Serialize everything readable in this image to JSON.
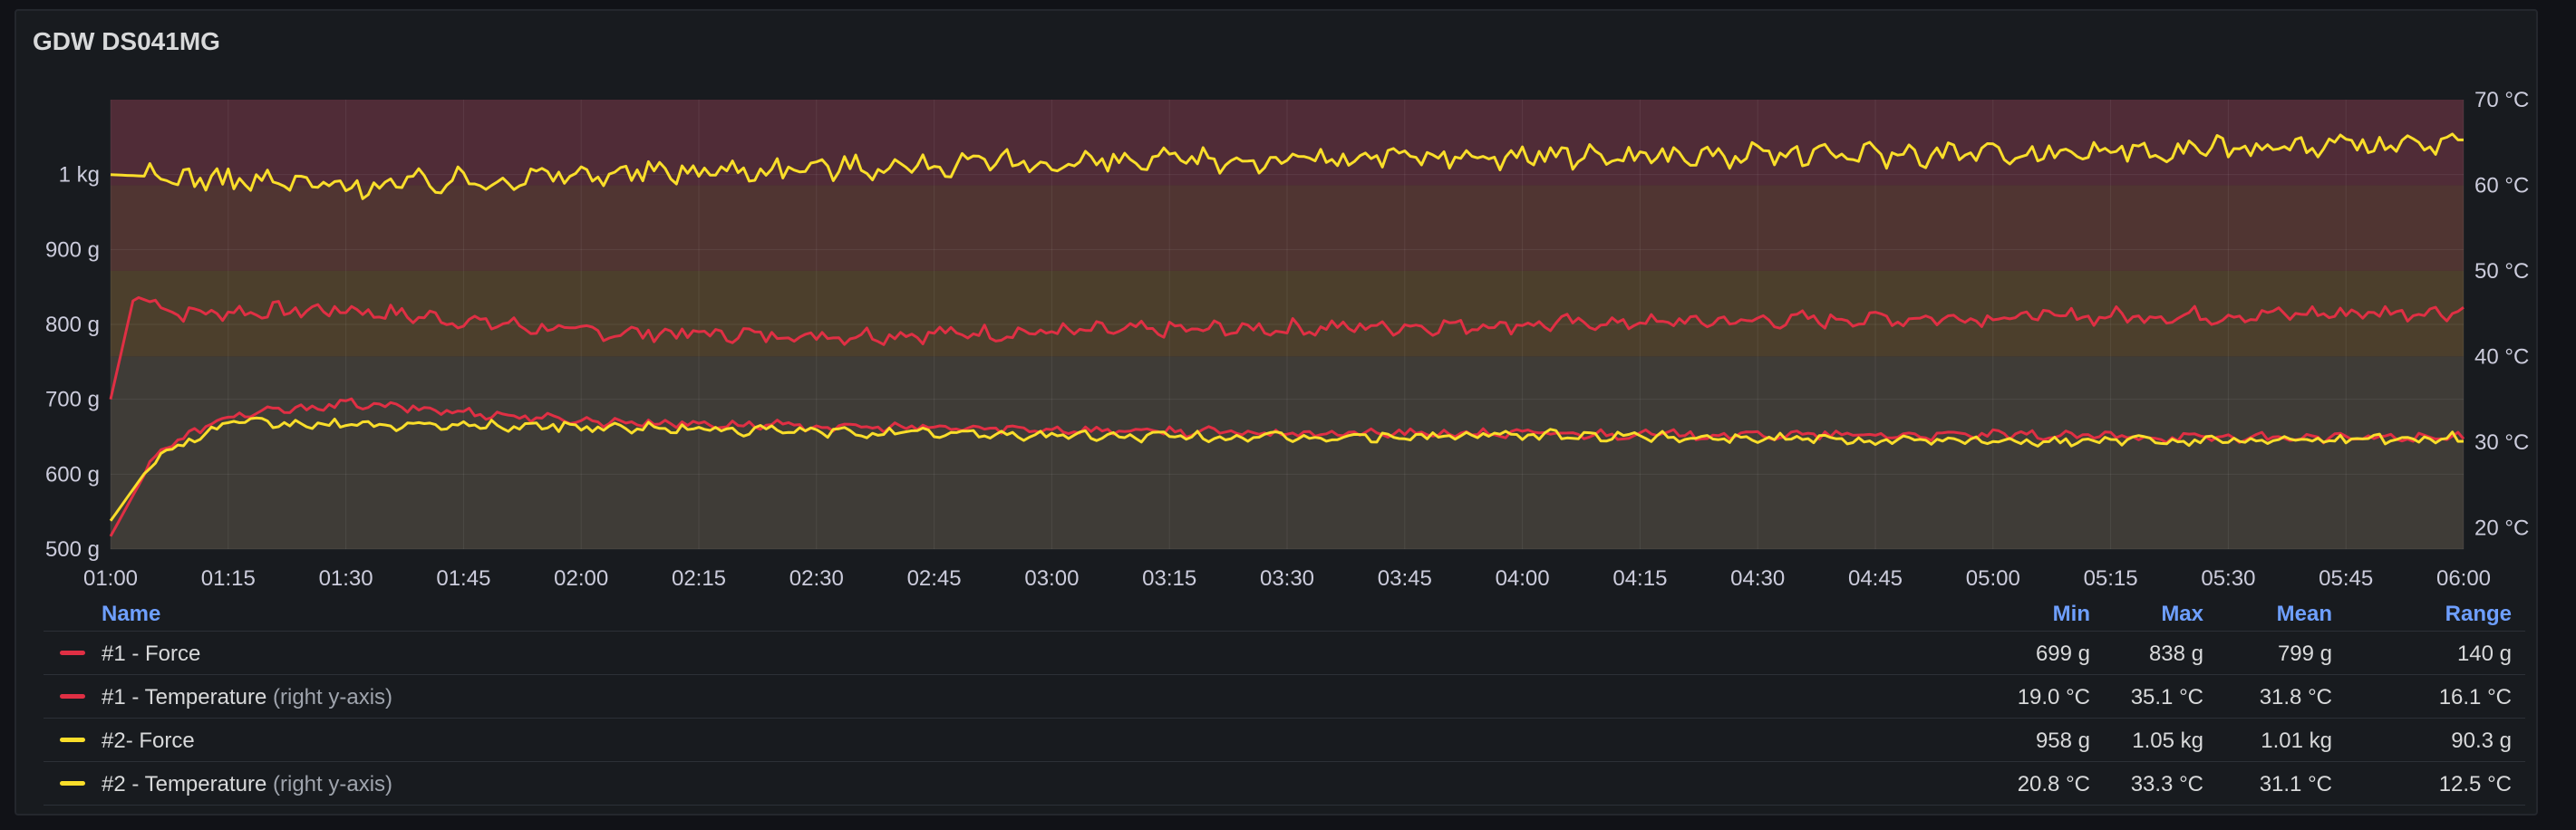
{
  "panel": {
    "title": "GDW DS041MG"
  },
  "colors": {
    "red": "#e02f44",
    "yellow": "#fade2a",
    "band_top": "#5a2f3c",
    "band_upper": "#5b3a36",
    "band_mid": "#56452f",
    "band_low": "#46423c"
  },
  "chart_data": {
    "type": "line",
    "x_ticks": [
      "01:00",
      "01:15",
      "01:30",
      "01:45",
      "02:00",
      "02:15",
      "02:30",
      "02:45",
      "03:00",
      "03:15",
      "03:30",
      "03:45",
      "04:00",
      "04:15",
      "04:30",
      "04:45",
      "05:00",
      "05:15",
      "05:30",
      "05:45",
      "06:00"
    ],
    "left_axis": {
      "ticks": [
        "500 g",
        "600 g",
        "700 g",
        "800 g",
        "900 g",
        "1 kg"
      ],
      "ylim": [
        500,
        1100
      ]
    },
    "right_axis": {
      "ticks": [
        "20 °C",
        "30 °C",
        "40 °C",
        "50 °C",
        "60 °C",
        "70 °C"
      ],
      "ylim": [
        17.5,
        70
      ]
    },
    "threshold_bands": [
      {
        "from": 60,
        "to": 70,
        "color": "#5a2f3c"
      },
      {
        "from": 50,
        "to": 60,
        "color": "#5b3a36"
      },
      {
        "from": 40,
        "to": 50,
        "color": "#56452f"
      },
      {
        "from": 17.5,
        "to": 40,
        "color": "#46423c"
      }
    ],
    "series": [
      {
        "name": "#1 - Force",
        "axis": "left",
        "color": "#e02f44",
        "x": [
          0,
          0.05,
          0.15,
          0.5,
          1,
          1.5,
          2,
          2.5,
          3,
          3.5,
          4,
          4.5,
          5
        ],
        "y": [
          700,
          838,
          815,
          820,
          790,
          785,
          790,
          795,
          800,
          805,
          810,
          812,
          818
        ]
      },
      {
        "name": "#1 - Temperature",
        "axis": "right",
        "color": "#e02f44",
        "x": [
          0,
          0.1,
          0.25,
          0.5,
          1,
          1.5,
          2,
          2.5,
          3,
          3.5,
          4,
          4.5,
          5
        ],
        "y": [
          19.0,
          29.0,
          33.0,
          34.5,
          32.5,
          31.8,
          31.5,
          31.0,
          31.0,
          30.8,
          30.8,
          30.5,
          30.5
        ]
      },
      {
        "name": "#2- Force",
        "axis": "left",
        "color": "#fade2a",
        "x": [
          0,
          0.5,
          1,
          1.5,
          2,
          2.5,
          3,
          3.5,
          4,
          4.5,
          5
        ],
        "y": [
          1000,
          985,
          1000,
          1010,
          1015,
          1020,
          1025,
          1025,
          1030,
          1035,
          1040
        ]
      },
      {
        "name": "#2 - Temperature",
        "axis": "right",
        "color": "#fade2a",
        "x": [
          0,
          0.1,
          0.25,
          0.5,
          1,
          1.5,
          2,
          2.5,
          3,
          3.5,
          4,
          4.5,
          5
        ],
        "y": [
          20.8,
          28.5,
          32.2,
          32.0,
          31.8,
          31.2,
          30.8,
          30.5,
          30.8,
          30.5,
          30.0,
          30.3,
          30.5
        ]
      }
    ]
  },
  "legend": {
    "headers": {
      "name": "Name",
      "min": "Min",
      "max": "Max",
      "mean": "Mean",
      "range": "Range"
    },
    "rows": [
      {
        "name": "#1 - Force",
        "suffix": "",
        "color": "#e02f44",
        "min": "699 g",
        "max": "838 g",
        "mean": "799 g",
        "range": "140 g"
      },
      {
        "name": "#1 - Temperature",
        "suffix": "(right y-axis)",
        "color": "#e02f44",
        "min": "19.0 °C",
        "max": "35.1 °C",
        "mean": "31.8 °C",
        "range": "16.1 °C"
      },
      {
        "name": "#2- Force",
        "suffix": "",
        "color": "#fade2a",
        "min": "958 g",
        "max": "1.05 kg",
        "mean": "1.01 kg",
        "range": "90.3 g"
      },
      {
        "name": "#2 - Temperature",
        "suffix": "(right y-axis)",
        "color": "#fade2a",
        "min": "20.8 °C",
        "max": "33.3 °C",
        "mean": "31.1 °C",
        "range": "12.5 °C"
      }
    ]
  }
}
